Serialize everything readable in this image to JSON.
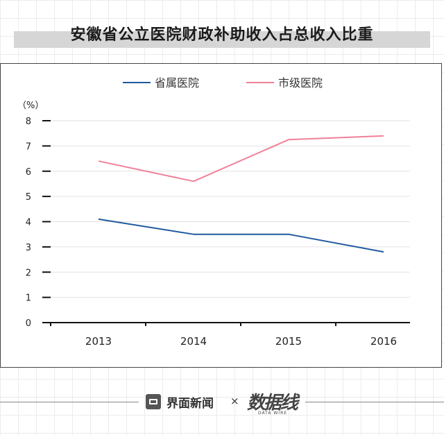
{
  "title": "安徽省公立医院财政补助收入占总收入比重",
  "footer": {
    "brand_name": "界面新闻",
    "times": "×",
    "partner_logo": "数据线",
    "partner_sub": "DATA WIRE"
  },
  "colors": {
    "series_provincial": "#1f5a9e",
    "series_city": "#f08098"
  },
  "chart_data": {
    "type": "line",
    "title": "安徽省公立医院财政补助收入占总收入比重",
    "ylabel": "（%）",
    "xlabel": "",
    "categories": [
      "2013",
      "2014",
      "2015",
      "2016"
    ],
    "y_ticks": [
      "0",
      "1",
      "2",
      "3",
      "4",
      "5",
      "6",
      "7",
      "8"
    ],
    "ylim": [
      0,
      8
    ],
    "grid": true,
    "legend_position": "top-center",
    "series": [
      {
        "name": "省属医院",
        "values": [
          4.1,
          3.5,
          3.5,
          2.8
        ]
      },
      {
        "name": "市级医院",
        "values": [
          6.4,
          5.6,
          7.25,
          7.4
        ]
      }
    ]
  }
}
